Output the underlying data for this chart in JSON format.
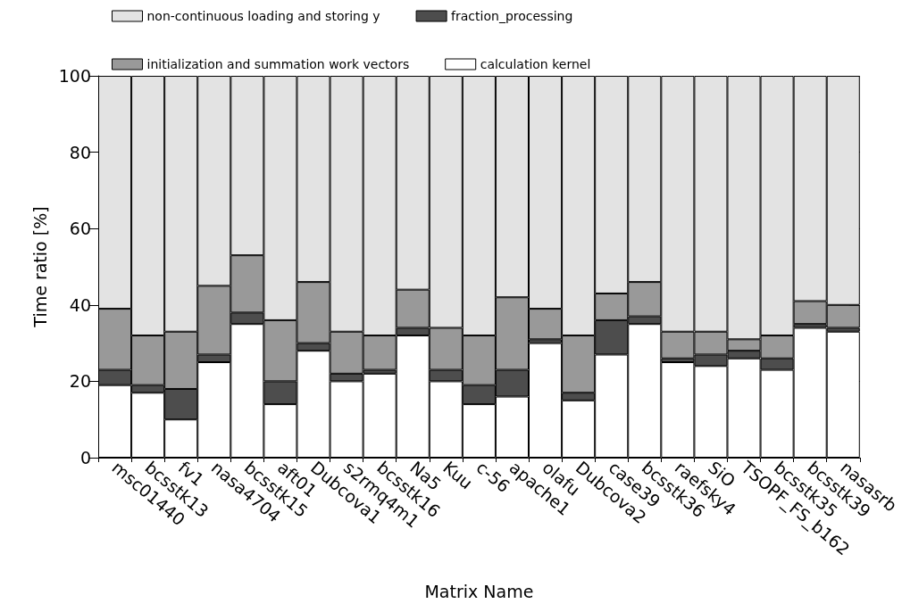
{
  "chart_data": {
    "type": "bar",
    "stacked": true,
    "xlabel": "Matrix Name",
    "ylabel": "Time ratio [%]",
    "categories": [
      "msc01440",
      "bcsstk13",
      "fv1",
      "nasa4704",
      "bcsstk15",
      "aft01",
      "Dubcova1",
      "s2rmq4m1",
      "bcsstk16",
      "Na5",
      "Kuu",
      "c-56",
      "apache1",
      "olafu",
      "Dubcova2",
      "case39",
      "bcsstk36",
      "raefsky4",
      "SiO",
      "TSOPF_FS_b162",
      "bcsstk35",
      "bcsstk39",
      "nasasrb"
    ],
    "series": [
      {
        "name": "calculation kernel",
        "color": "#ffffff",
        "values": [
          19,
          17,
          10,
          25,
          35,
          14,
          28,
          20,
          22,
          32,
          20,
          14,
          16,
          30,
          15,
          27,
          35,
          25,
          24,
          26,
          23,
          34,
          33
        ]
      },
      {
        "name": "fraction_processing",
        "color": "#4d4d4d",
        "values": [
          4,
          2,
          8,
          2,
          3,
          6,
          2,
          2,
          1,
          2,
          3,
          5,
          7,
          1,
          2,
          9,
          2,
          1,
          3,
          2,
          3,
          1,
          1
        ]
      },
      {
        "name": "initialization and summation work vectors",
        "color": "#999999",
        "values": [
          16,
          13,
          15,
          18,
          15,
          16,
          16,
          11,
          9,
          10,
          11,
          13,
          19,
          8,
          15,
          7,
          9,
          7,
          6,
          3,
          6,
          6,
          6
        ]
      },
      {
        "name": "non-continuous loading and storing y",
        "color": "#e3e3e3",
        "values": [
          61,
          68,
          67,
          55,
          47,
          64,
          54,
          67,
          68,
          56,
          66,
          68,
          58,
          61,
          68,
          57,
          54,
          67,
          67,
          69,
          68,
          59,
          60
        ]
      }
    ],
    "ylim": [
      0,
      100
    ],
    "yticks": [
      0,
      20,
      40,
      60,
      80,
      100
    ],
    "grid": false,
    "legend": "top"
  }
}
